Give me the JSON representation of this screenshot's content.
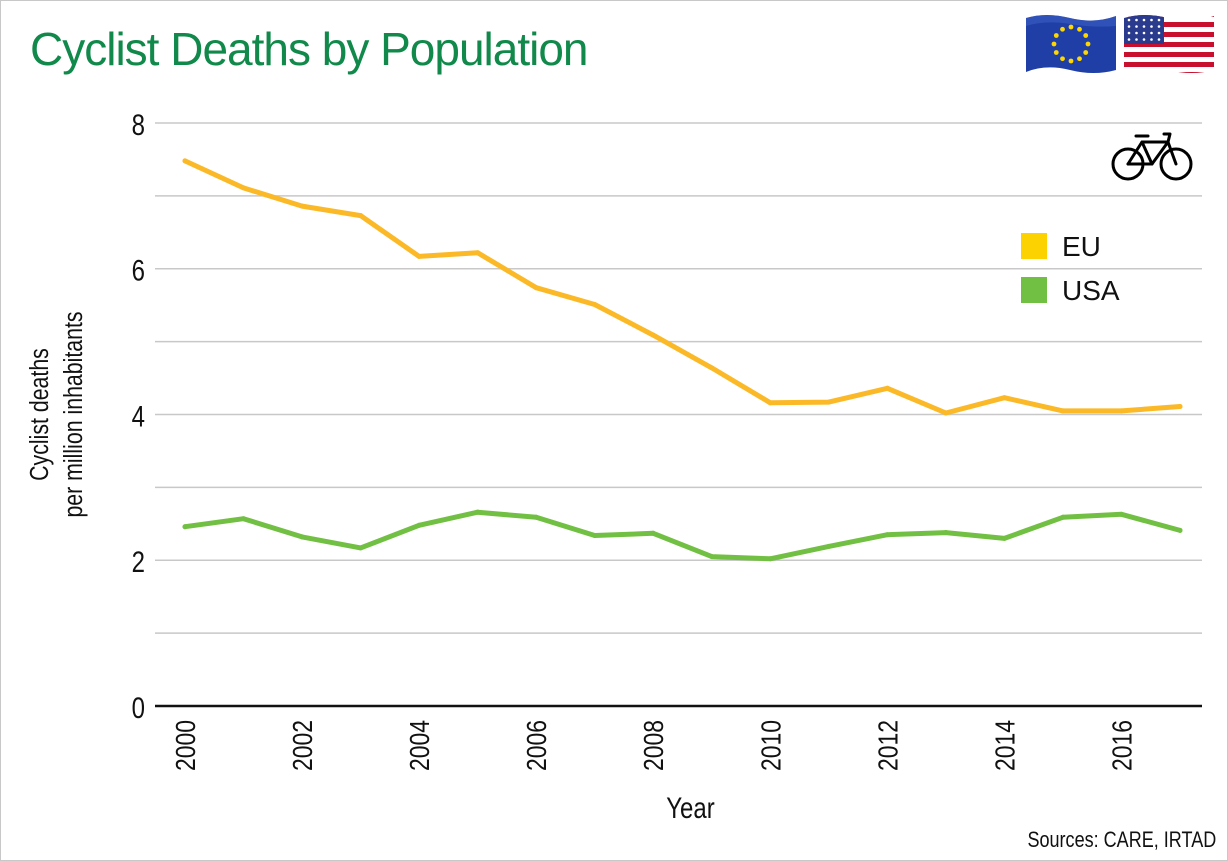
{
  "title": "Cyclist Deaths by Population",
  "source": "Sources: CARE, IRTAD",
  "icons": {
    "eu_flag": "eu-flag-icon",
    "us_flag": "us-flag-icon",
    "bicycle": "bicycle-icon"
  },
  "colors": {
    "title": "#10894a",
    "eu": "#fbb927",
    "usa": "#72c043",
    "grid": "#c8c8c8",
    "eu_legend": "#fcd200"
  },
  "chart_data": {
    "type": "line",
    "title": "Cyclist Deaths by Population",
    "xlabel": "Year",
    "ylabel": "Cyclist deaths per million inhabitants",
    "ylabel_lines": [
      "Cyclist deaths",
      "per million inhabitants"
    ],
    "x": [
      2000,
      2001,
      2002,
      2003,
      2004,
      2005,
      2006,
      2007,
      2008,
      2009,
      2010,
      2011,
      2012,
      2013,
      2014,
      2015,
      2016,
      2017
    ],
    "xticks": [
      "2000",
      "2002",
      "2004",
      "2006",
      "2008",
      "2010",
      "2012",
      "2014",
      "2016"
    ],
    "xlim": [
      2000,
      2017
    ],
    "ylim": [
      0,
      8
    ],
    "yticks": [
      "0",
      "2",
      "4",
      "6",
      "8"
    ],
    "grid": true,
    "legend_position": "top-right",
    "series": [
      {
        "name": "EU",
        "values": [
          7.48,
          7.11,
          6.86,
          6.73,
          6.17,
          6.22,
          5.74,
          5.51,
          5.09,
          4.64,
          4.16,
          4.17,
          4.36,
          4.02,
          4.23,
          4.05,
          4.05,
          4.11
        ]
      },
      {
        "name": "USA",
        "values": [
          2.46,
          2.57,
          2.32,
          2.17,
          2.48,
          2.66,
          2.59,
          2.34,
          2.37,
          2.05,
          2.02,
          2.19,
          2.35,
          2.38,
          2.3,
          2.59,
          2.63,
          2.41
        ]
      }
    ]
  }
}
